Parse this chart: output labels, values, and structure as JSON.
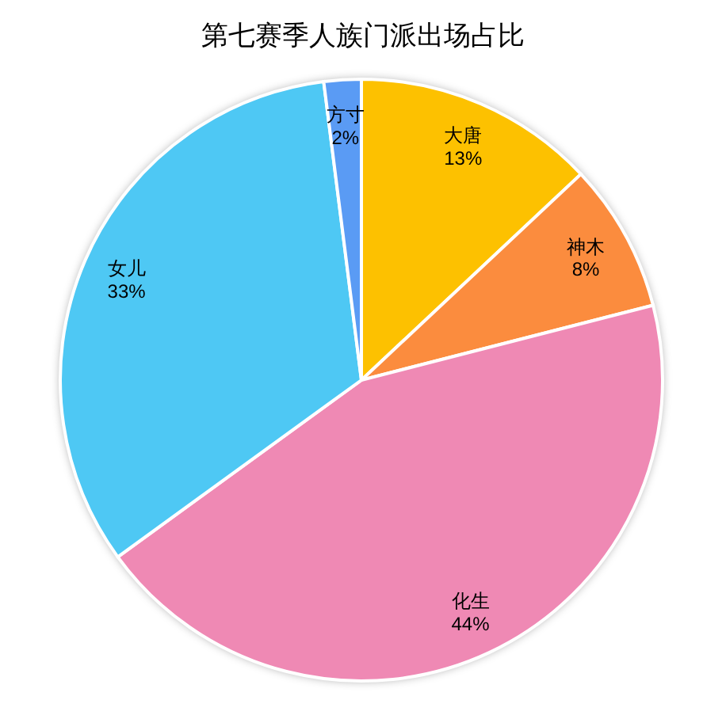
{
  "chart_data": {
    "type": "pie",
    "title": "第七赛季人族门派出场占比",
    "categories": [
      "大唐",
      "神木",
      "化生",
      "女儿",
      "方寸"
    ],
    "values": [
      13,
      8,
      44,
      33,
      2
    ],
    "value_labels": [
      "13%",
      "8%",
      "44%",
      "33%",
      "2%"
    ],
    "colors": [
      "#fdc100",
      "#fb8c3e",
      "#ef89b4",
      "#4ec8f4",
      "#5a9bf4"
    ],
    "legend": false
  }
}
